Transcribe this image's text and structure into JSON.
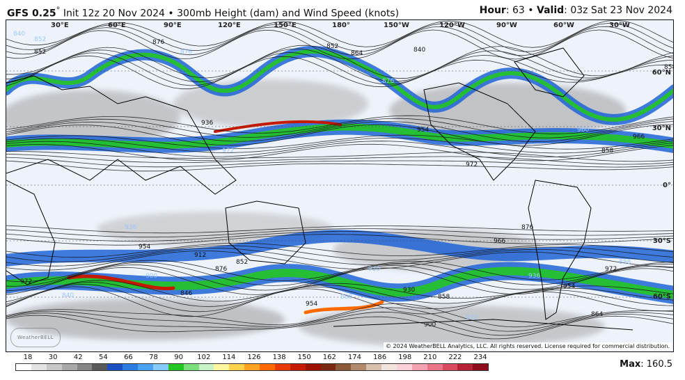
{
  "header": {
    "model": "GFS 0.25",
    "init": "Init 12z 20 Nov 2024",
    "product": "300mb Height (dam) and Wind Speed (knots)",
    "hour_label": "Hour",
    "hour_value": "63",
    "valid_label": "Valid",
    "valid_value": "03z Sat 23 Nov 2024"
  },
  "map": {
    "lon_labels": [
      "30°E",
      "60°E",
      "90°E",
      "120°E",
      "150°E",
      "180°",
      "150°W",
      "120°W",
      "90°W",
      "60°W",
      "30°W"
    ],
    "lat_labels": [
      "60°N",
      "30°N",
      "0°",
      "30°S",
      "60°S"
    ],
    "contour_labels": [
      "840",
      "852",
      "876",
      "876",
      "852",
      "864",
      "876",
      "936",
      "954",
      "972",
      "972",
      "954",
      "936",
      "912",
      "876",
      "840",
      "972",
      "966",
      "936",
      "954",
      "972",
      "888",
      "858",
      "864",
      "900",
      "930",
      "966",
      "960",
      "858",
      "846",
      "972",
      "840",
      "858",
      "852",
      "852",
      "954",
      "930",
      "900",
      "876",
      "888"
    ],
    "copyright": "© 2024 WeatherBELL Analytics, LLC. All rights reserved. License required for commercial distribution.",
    "logo_text": "WeatherBELL"
  },
  "colorbar": {
    "labels": [
      "18",
      "30",
      "42",
      "54",
      "66",
      "78",
      "90",
      "102",
      "114",
      "126",
      "138",
      "150",
      "162",
      "174",
      "186",
      "198",
      "210",
      "222",
      "234"
    ],
    "colors": [
      "#ffffff",
      "#e3e3e3",
      "#c8c8c8",
      "#a8a8a8",
      "#868686",
      "#5a5a5a",
      "#1c4fbf",
      "#2b7be0",
      "#4aa3f2",
      "#86c9fb",
      "#22c522",
      "#7be07b",
      "#c6f2c6",
      "#fff7a0",
      "#ffd24d",
      "#ffa21f",
      "#ff6a00",
      "#e83a00",
      "#c41a00",
      "#9c1000",
      "#7a2a10",
      "#8c5a3a",
      "#b08a6a",
      "#d8bfae",
      "#f1e3dc",
      "#fbd0d8",
      "#f4a2b2",
      "#ea7488",
      "#d94a5e",
      "#b52236",
      "#8e0c1e"
    ]
  },
  "max": {
    "label": "Max",
    "value": "160.5"
  }
}
